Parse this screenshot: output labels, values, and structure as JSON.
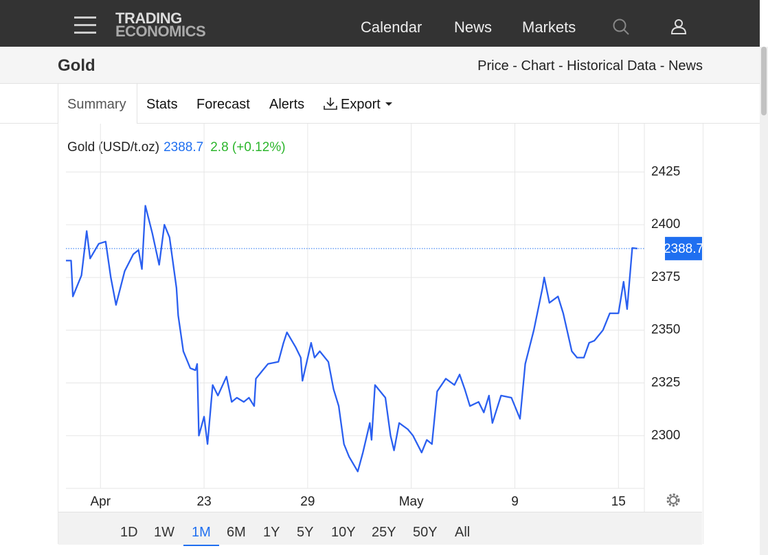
{
  "header": {
    "logo_top": "TRADING",
    "logo_bottom": "ECONOMICS",
    "nav": [
      "Calendar",
      "News",
      "Markets"
    ]
  },
  "subheader": {
    "title": "Gold",
    "links": "Price - Chart - Historical Data - News"
  },
  "tabs": [
    "Summary",
    "Stats",
    "Forecast",
    "Alerts"
  ],
  "export": "Export",
  "ranges": [
    "1D",
    "1W",
    "1M",
    "6M",
    "1Y",
    "5Y",
    "10Y",
    "25Y",
    "50Y",
    "All"
  ],
  "selected_range": "1M",
  "chart_data": {
    "type": "line",
    "last_price": 2388.7,
    "change": "2.8 (+0.12%)",
    "x": [
      0,
      0.3,
      0.4,
      0.9,
      1.2,
      1.4,
      1.9,
      2.3,
      2.6,
      2.9,
      3.4,
      3.9,
      4.2,
      4.4,
      4.6,
      5.0,
      5.4,
      5.7,
      6.0,
      6.4,
      6.5,
      6.8,
      7.2,
      7.5,
      7.6,
      7.7,
      8.0,
      8.2,
      8.5,
      8.8,
      9.3,
      9.6,
      9.9,
      10.3,
      10.6,
      10.9,
      11.0,
      11.4,
      11.7,
      12.3,
      12.6,
      12.8,
      13.3,
      13.6,
      13.7,
      14.2,
      14.4,
      14.7,
      15.2,
      15.5,
      15.8,
      16.1,
      16.4,
      16.9,
      17.2,
      17.6,
      17.7,
      17.9,
      18.5,
      18.8,
      19.0,
      19.3,
      19.8,
      20.1,
      20.6,
      20.9,
      21.2,
      21.5,
      22.0,
      22.5,
      22.8,
      23.1,
      23.4,
      23.9,
      24.2,
      24.5,
      24.7,
      25.2,
      25.8,
      26.3,
      26.6,
      27.1,
      27.6,
      27.7,
      28.0,
      28.5,
      28.8,
      29.3,
      29.6,
      30.0,
      30.3,
      30.6,
      31.1,
      31.5,
      32.0,
      32.3,
      32.5,
      32.8,
      33.1
    ],
    "series": [
      {
        "name": "Gold (USD/t.oz)",
        "color": "#2a5ff0",
        "values": [
          2383,
          2383,
          2366,
          2376,
          2397,
          2384,
          2391,
          2392,
          2375,
          2362,
          2378,
          2386,
          2388,
          2379,
          2409,
          2396,
          2381,
          2400,
          2394,
          2370,
          2357,
          2340,
          2332,
          2331,
          2334,
          2300,
          2309,
          2296,
          2324,
          2319,
          2328,
          2316,
          2318,
          2316,
          2318,
          2314,
          2327,
          2331,
          2334,
          2335,
          2344,
          2349,
          2342,
          2337,
          2326,
          2344,
          2337,
          2340,
          2335,
          2322,
          2314,
          2296,
          2290,
          2283,
          2292,
          2306,
          2298,
          2324,
          2318,
          2300,
          2293,
          2306,
          2303,
          2300,
          2292,
          2298,
          2296,
          2321,
          2327,
          2324,
          2329,
          2322,
          2314,
          2316,
          2311,
          2319,
          2306,
          2319,
          2318,
          2308,
          2334,
          2350,
          2370,
          2375,
          2363,
          2366,
          2358,
          2340,
          2337,
          2337,
          2344,
          2345,
          2350,
          2358,
          2358,
          2373,
          2360,
          2389,
          2388.7
        ]
      }
    ],
    "xlim": [
      0,
      33.5
    ],
    "xticks": [
      {
        "value": 2,
        "label": "Apr"
      },
      {
        "value": 8,
        "label": "23"
      },
      {
        "value": 14,
        "label": "29"
      },
      {
        "value": 20,
        "label": "May"
      },
      {
        "value": 26,
        "label": "9"
      },
      {
        "value": 32,
        "label": "15"
      }
    ],
    "ylim": [
      2275,
      2445
    ],
    "yticks": [
      2300,
      2325,
      2350,
      2375,
      2400,
      2425
    ],
    "grid": true,
    "price_color": "#1f6ff0",
    "change_color": "#2bb52b"
  }
}
